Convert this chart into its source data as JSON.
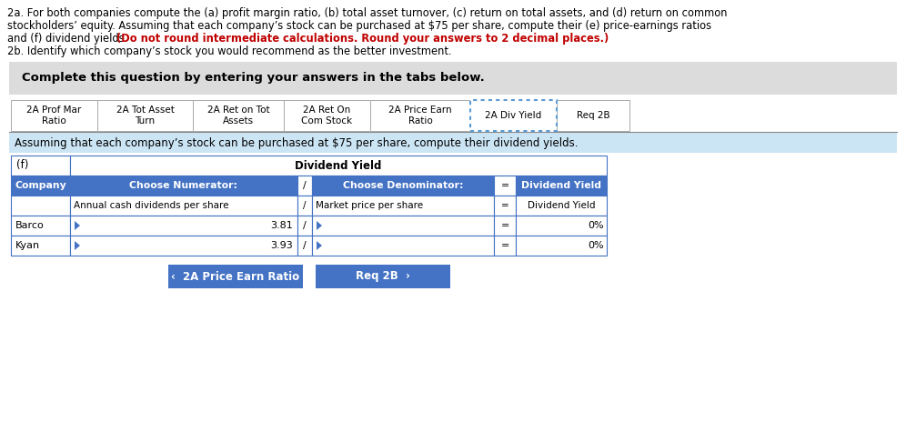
{
  "title_line1": "2a. For both companies compute the (a) profit margin ratio, (b) total asset turnover, (c) return on total assets, and (d) return on common",
  "title_line2": "stockholders’ equity. Assuming that each company’s stock can be purchased at $75 per share, compute their (e) price-earnings ratios",
  "title_line3_normal": "and (f) dividend yields. ",
  "title_line3_red": "(Do not round intermediate calculations. Round your answers to 2 decimal places.)",
  "title_line4": "2b. Identify which company’s stock you would recommend as the better investment.",
  "complete_text": "Complete this question by entering your answers in the tabs below.",
  "tabs": [
    "2A Prof Mar\nRatio",
    "2A Tot Asset\nTurn",
    "2A Ret on Tot\nAssets",
    "2A Ret On\nCom Stock",
    "2A Price Earn\nRatio",
    "2A Div Yield",
    "Req 2B"
  ],
  "active_tab_idx": 5,
  "instruction": "Assuming that each company’s stock can be purchased at $75 per share, compute their dividend yields.",
  "section_label": "(f)",
  "section_title": "Dividend Yield",
  "col_headers": [
    "Company",
    "Choose Numerator:",
    "/",
    "Choose Denominator:",
    "=",
    "Dividend Yield"
  ],
  "numerator_label": "Annual cash dividends per share",
  "denominator_label": "Market price per share",
  "result_label": "Dividend Yield",
  "barco_numerator": "3.81",
  "kyan_numerator": "3.93",
  "barco_result": "0",
  "kyan_result": "0",
  "btn1_text": "‹  2A Price Earn Ratio",
  "btn2_text": "Req 2B  ›",
  "bg_gray": "#dcdcdc",
  "bg_light_blue": "#cce5f5",
  "tab_active_border": "#5b9bd5",
  "table_header_bg": "#4472c4",
  "table_header_fg": "#ffffff",
  "table_border": "#4472c4",
  "btn_color": "#4472c4",
  "btn_text_color": "#ffffff",
  "red_text": "#c00000",
  "tab_widths": [
    95,
    105,
    100,
    95,
    110,
    95,
    80
  ]
}
